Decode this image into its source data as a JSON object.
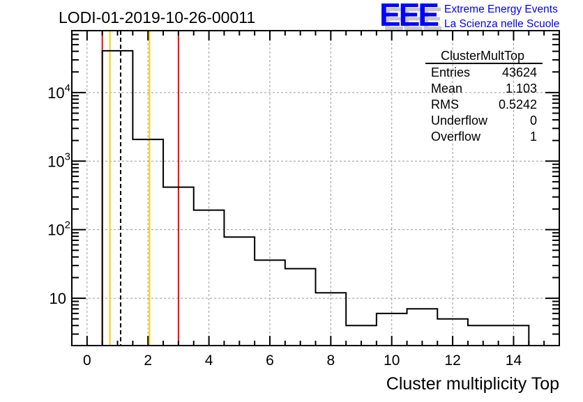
{
  "logo": {
    "mark": "EEE",
    "line1": "Extreme Energy Events",
    "line2": "La Scienza nelle Scuole",
    "color": "#0000ff"
  },
  "chart_data": {
    "type": "histogram",
    "title": "LODI-01-2019-10-26-00011",
    "xlabel": "Cluster multiplicity Top",
    "ylabel": "",
    "xlim": [
      -0.5,
      15.5
    ],
    "ylim": [
      2.04,
      80000
    ],
    "yscale": "log",
    "grid": true,
    "x_ticks": [
      "0",
      "2",
      "4",
      "6",
      "8",
      "10",
      "12",
      "14"
    ],
    "y_ticks": [
      {
        "base": "10",
        "exp": ""
      },
      {
        "base": "10",
        "exp": "2"
      },
      {
        "base": "10",
        "exp": "3"
      },
      {
        "base": "10",
        "exp": "4"
      }
    ],
    "bin_edges": [
      0.5,
      1.5,
      2.5,
      3.5,
      4.5,
      5.5,
      6.5,
      7.5,
      8.5,
      9.5,
      10.5,
      11.5,
      12.5,
      13.5,
      14.5
    ],
    "values": [
      40760,
      2070,
      417,
      193,
      78,
      36,
      27,
      12,
      4,
      6,
      7,
      5,
      4,
      4
    ],
    "vertical_lines": [
      {
        "x": 0.5,
        "color": "#ff0000",
        "style": "solid"
      },
      {
        "x": 3.0,
        "color": "#ff0000",
        "style": "solid"
      },
      {
        "x": 0.75,
        "color": "#ffcc00",
        "style": "solid"
      },
      {
        "x": 2.05,
        "color": "#ffcc00",
        "style": "solid"
      },
      {
        "x": 1.103,
        "color": "#000000",
        "style": "dashed"
      }
    ],
    "stats": {
      "name": "ClusterMultTop",
      "rows": [
        {
          "label": "Entries",
          "value": "43624"
        },
        {
          "label": "Mean",
          "value": "1.103"
        },
        {
          "label": "RMS",
          "value": "0.5242"
        },
        {
          "label": "Underflow",
          "value": "0"
        },
        {
          "label": "Overflow",
          "value": "1"
        }
      ]
    }
  }
}
